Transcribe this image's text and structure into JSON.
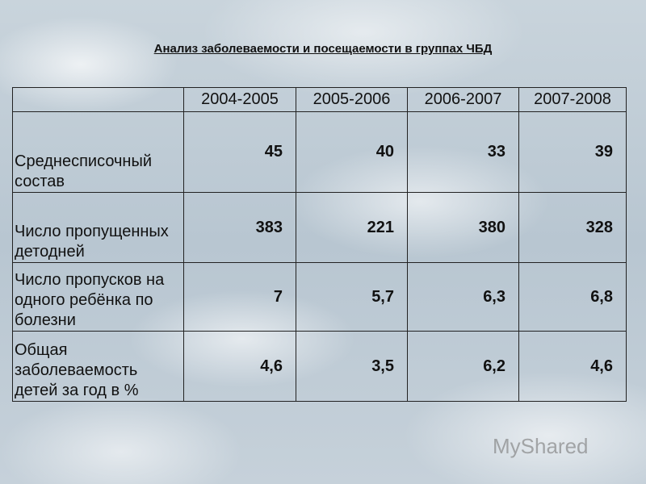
{
  "title": "Анализ заболеваемости и посещаемости в группах ЧБД",
  "table": {
    "header": [
      "",
      "2004-2005",
      "2005-2006",
      "2006-2007",
      "2007-2008"
    ],
    "rows": [
      [
        "Среднесписочный состав",
        "45",
        "40",
        "33",
        "39"
      ],
      [
        "Число пропущенных детодней",
        "383",
        "221",
        "380",
        "328"
      ],
      [
        "Число пропусков на одного ребёнка по болезни",
        "7",
        "5,7",
        "6,3",
        "6,8"
      ],
      [
        "Общая заболеваемость детей за год в %",
        "4,6",
        "3,5",
        "6,2",
        "4,6"
      ]
    ]
  },
  "watermark": "MyShared"
}
